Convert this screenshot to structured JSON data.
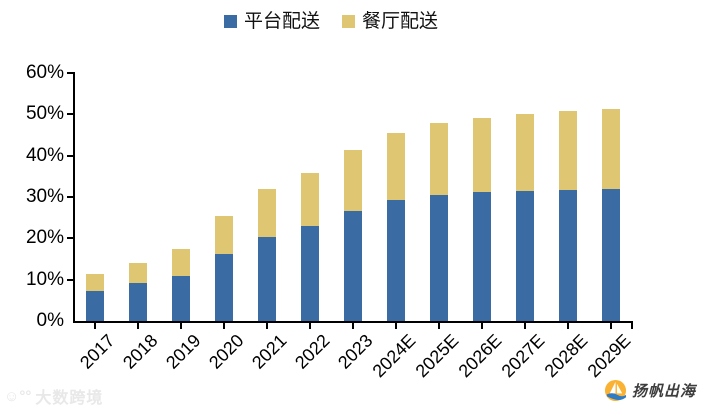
{
  "legend": {
    "items": [
      {
        "label": "平台配送",
        "color": "#3A6CA3"
      },
      {
        "label": "餐厅配送",
        "color": "#DFC672"
      }
    ]
  },
  "chart_data": {
    "type": "bar",
    "stacked": true,
    "title": "",
    "xlabel": "",
    "ylabel": "",
    "categories": [
      "2017",
      "2018",
      "2019",
      "2020",
      "2021",
      "2022",
      "2023",
      "2024E",
      "2025E",
      "2026E",
      "2027E",
      "2028E",
      "2029E"
    ],
    "series": [
      {
        "name": "平台配送",
        "color": "#3A6CA3",
        "values": [
          7.3,
          9.2,
          11.0,
          16.2,
          20.4,
          23.0,
          26.7,
          29.3,
          30.6,
          31.1,
          31.4,
          31.8,
          32.0
        ]
      },
      {
        "name": "餐厅配送",
        "color": "#DFC672",
        "values": [
          4.0,
          4.8,
          6.5,
          9.3,
          11.6,
          12.8,
          14.6,
          16.3,
          17.4,
          18.1,
          18.6,
          19.0,
          19.4
        ]
      }
    ],
    "totals": [
      11.3,
      14.0,
      17.5,
      25.5,
      32.0,
      35.8,
      41.3,
      45.6,
      48.0,
      49.2,
      50.0,
      50.8,
      51.4
    ],
    "ylim": [
      0,
      60
    ],
    "ytick_step": 10,
    "yticks": [
      "0%",
      "10%",
      "20%",
      "30%",
      "40%",
      "50%",
      "60%"
    ],
    "grid": false,
    "legend_position": "top-center",
    "x_label_rotation": -45
  },
  "watermark": {
    "text": "大数跨境"
  },
  "logo": {
    "text": "扬帆出海"
  }
}
